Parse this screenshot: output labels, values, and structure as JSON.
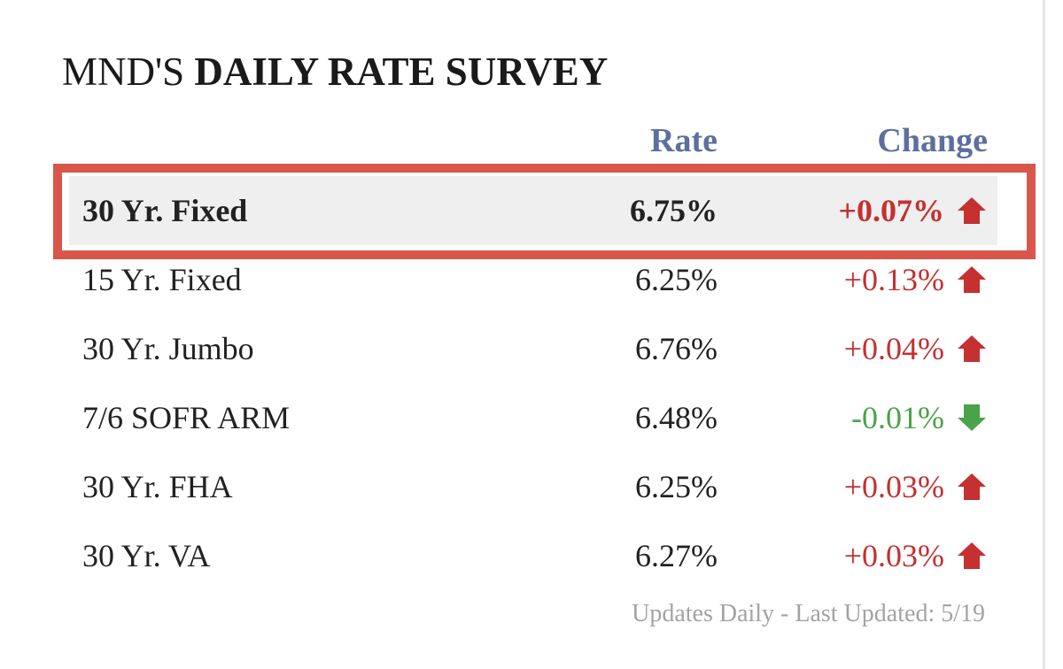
{
  "title": {
    "prefix": "MND'S",
    "emphasis": "DAILY RATE SURVEY"
  },
  "columns": {
    "rate": "Rate",
    "change": "Change"
  },
  "rows": [
    {
      "name": "30 Yr. Fixed",
      "rate": "6.75%",
      "change": "+0.07%",
      "direction": "up",
      "highlighted": true
    },
    {
      "name": "15 Yr. Fixed",
      "rate": "6.25%",
      "change": "+0.13%",
      "direction": "up",
      "highlighted": false
    },
    {
      "name": "30 Yr. Jumbo",
      "rate": "6.76%",
      "change": "+0.04%",
      "direction": "up",
      "highlighted": false
    },
    {
      "name": "7/6 SOFR ARM",
      "rate": "6.48%",
      "change": "-0.01%",
      "direction": "down",
      "highlighted": false
    },
    {
      "name": "30 Yr. FHA",
      "rate": "6.25%",
      "change": "+0.03%",
      "direction": "up",
      "highlighted": false
    },
    {
      "name": "30 Yr. VA",
      "rate": "6.27%",
      "change": "+0.03%",
      "direction": "up",
      "highlighted": false
    }
  ],
  "footer": "Updates Daily - Last Updated: 5/19",
  "icons": {
    "up": "arrow-up-icon",
    "down": "arrow-down-icon"
  },
  "colors": {
    "header": "#5c6f9e",
    "up": "#c53030",
    "down": "#4aa24a",
    "highlight_border": "#d8574a",
    "footer": "#a3a3a3"
  }
}
